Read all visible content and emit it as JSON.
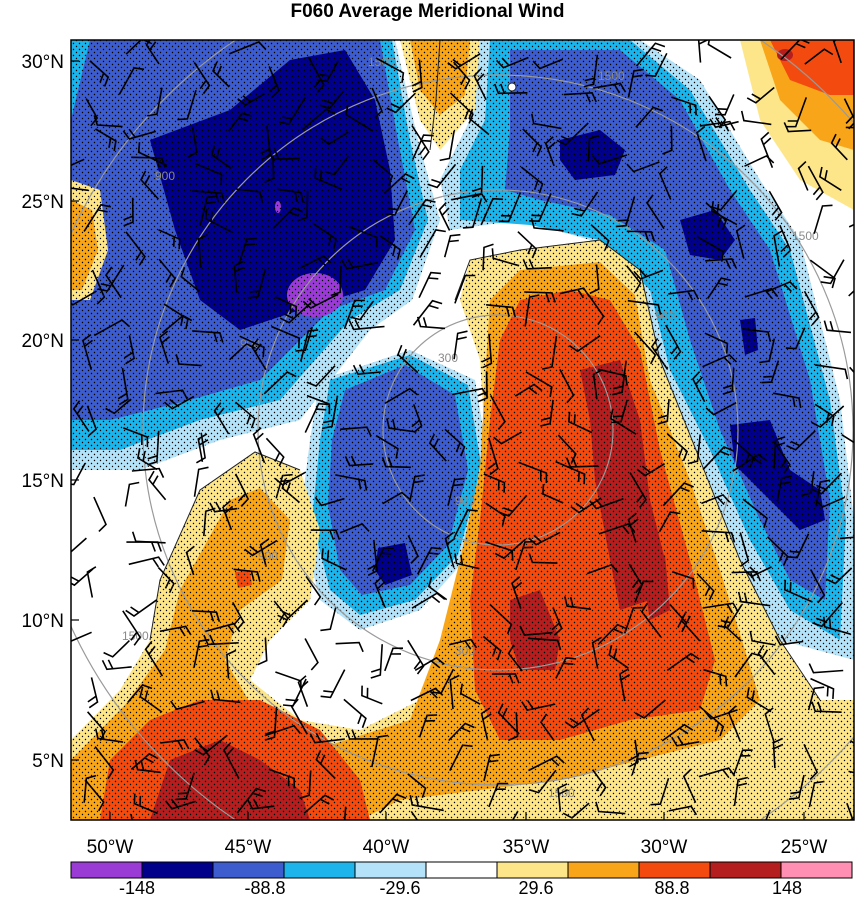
{
  "title": "F060 Average Meridional Wind",
  "lat_labels": [
    "30°N",
    "25°N",
    "20°N",
    "15°N",
    "10°N",
    "5°N"
  ],
  "lon_labels": [
    "50°W",
    "45°W",
    "40°W",
    "35°W",
    "30°W",
    "25°W"
  ],
  "colorbar": {
    "colors": [
      "#9a3bd6",
      "#00008b",
      "#3d5ccd",
      "#1cb4ea",
      "#b4e2f8",
      "#ffffff",
      "#fde68a",
      "#f8a51a",
      "#f34b0f",
      "#b41e1e",
      "#ff8fb3"
    ],
    "tick_labels": [
      "-148",
      "-88.8",
      "-29.6",
      "29.6",
      "88.8",
      "148"
    ]
  },
  "range_ring_labels": [
    "1500",
    "1500",
    "900",
    "900",
    "900",
    "900",
    "300",
    "300",
    "1500",
    "1500",
    "1500",
    "900"
  ]
}
